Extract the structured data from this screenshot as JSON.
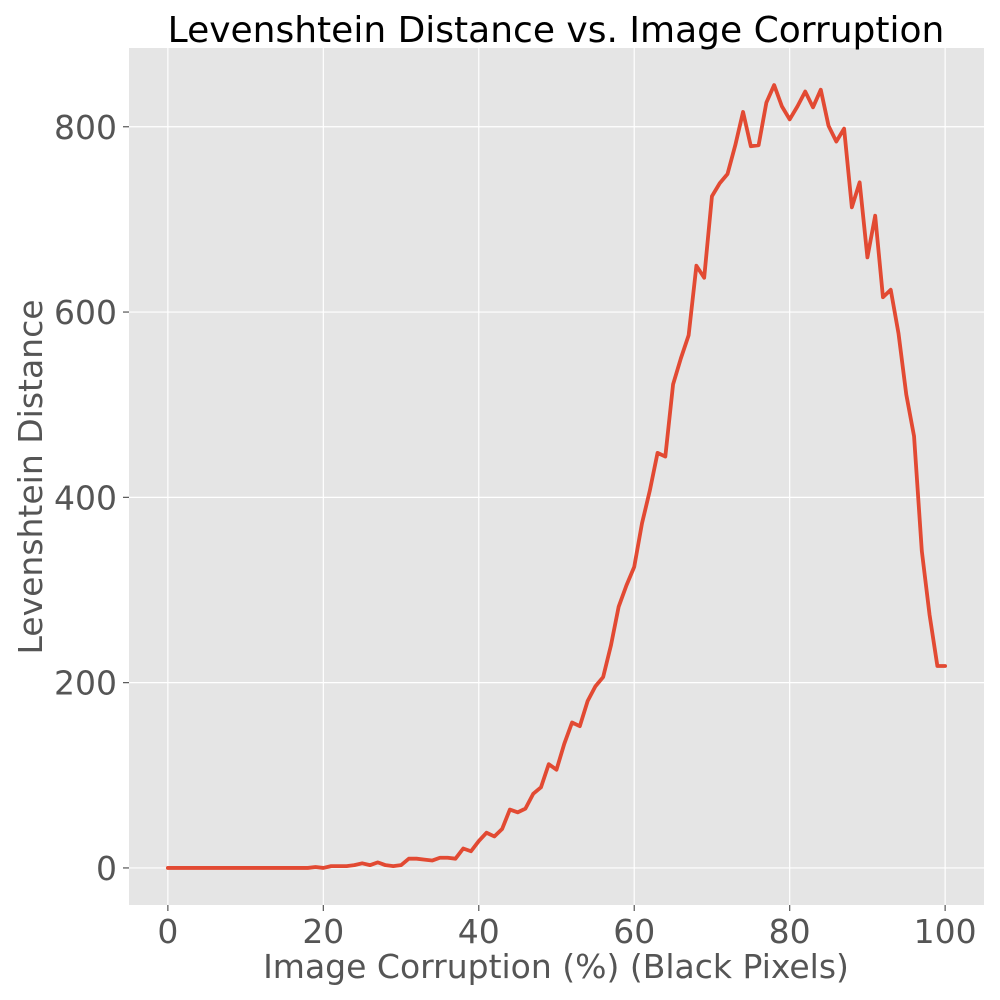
{
  "chart_data": {
    "type": "line",
    "title": "Levenshtein Distance vs. Image Corruption",
    "xlabel": "Image Corruption (%) (Black Pixels)",
    "ylabel": "Levenshtein Distance",
    "xlim": [
      -5,
      105
    ],
    "ylim": [
      -40,
      885
    ],
    "xticks": [
      0,
      20,
      40,
      60,
      80,
      100
    ],
    "yticks": [
      0,
      200,
      400,
      600,
      800
    ],
    "grid": true,
    "style": "ggplot",
    "colors": {
      "background": "#E5E5E5",
      "grid": "#FFFFFF",
      "line": "#E24A33",
      "tick_text": "#555555",
      "title_text": "#000000"
    },
    "series": [
      {
        "x": [
          0,
          1,
          2,
          3,
          4,
          5,
          6,
          7,
          8,
          9,
          10,
          11,
          12,
          13,
          14,
          15,
          16,
          17,
          18,
          19,
          20,
          21,
          22,
          23,
          24,
          25,
          26,
          27,
          28,
          29,
          30,
          31,
          32,
          33,
          34,
          35,
          36,
          37,
          38,
          39,
          40,
          41,
          42,
          43,
          44,
          45,
          46,
          47,
          48,
          49,
          50,
          51,
          52,
          53,
          54,
          55,
          56,
          57,
          58,
          59,
          60,
          61,
          62,
          63,
          64,
          65,
          66,
          67,
          68,
          69,
          70,
          71,
          72,
          73,
          74,
          75,
          76,
          77,
          78,
          79,
          80,
          81,
          82,
          83,
          84,
          85,
          86,
          87,
          88,
          89,
          90,
          91,
          92,
          93,
          94,
          95,
          96,
          97,
          98,
          99,
          100
        ],
        "values": [
          0,
          0,
          0,
          0,
          0,
          0,
          0,
          0,
          0,
          0,
          0,
          0,
          0,
          0,
          0,
          0,
          0,
          0,
          0,
          1,
          0,
          2,
          2,
          2,
          3,
          5,
          3,
          6,
          3,
          2,
          3,
          10,
          10,
          9,
          8,
          11,
          11,
          10,
          21,
          18,
          29,
          38,
          34,
          42,
          63,
          60,
          64,
          80,
          87,
          112,
          106,
          134,
          157,
          153,
          180,
          196,
          206,
          240,
          282,
          305,
          325,
          372,
          407,
          448,
          444,
          522,
          550,
          575,
          650,
          637,
          725,
          739,
          749,
          780,
          816,
          779,
          780,
          826,
          845,
          822,
          808,
          822,
          838,
          821,
          840,
          801,
          784,
          798,
          713,
          740,
          659,
          704,
          616,
          624,
          577,
          511,
          466,
          342,
          273,
          218,
          218
        ]
      }
    ]
  }
}
